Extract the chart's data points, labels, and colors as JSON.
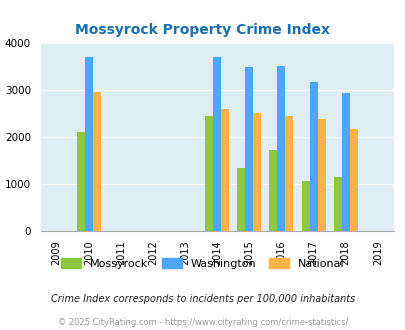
{
  "title": "Mossyrock Property Crime Index",
  "years": [
    2009,
    2010,
    2011,
    2012,
    2013,
    2014,
    2015,
    2016,
    2017,
    2018,
    2019
  ],
  "data_years": [
    2010,
    2014,
    2015,
    2016,
    2017,
    2018
  ],
  "mossyrock": [
    2100,
    2450,
    1350,
    1720,
    1060,
    1140
  ],
  "washington": [
    3700,
    3700,
    3490,
    3500,
    3160,
    2940
  ],
  "national": [
    2950,
    2600,
    2500,
    2450,
    2375,
    2170
  ],
  "bar_width": 0.25,
  "colors": {
    "mossyrock": "#8dc63f",
    "washington": "#4da6ff",
    "national": "#ffb347"
  },
  "bg_color": "#ddeef5",
  "ylim": [
    0,
    4000
  ],
  "yticks": [
    0,
    1000,
    2000,
    3000,
    4000
  ],
  "footer_text1": "Crime Index corresponds to incidents per 100,000 inhabitants",
  "footer_text2": "© 2025 CityRating.com - https://www.cityrating.com/crime-statistics/",
  "legend_labels": [
    "Mossyrock",
    "Washington",
    "National"
  ],
  "title_color": "#1a6fad",
  "footer1_color": "#222222",
  "footer2_color": "#999999"
}
